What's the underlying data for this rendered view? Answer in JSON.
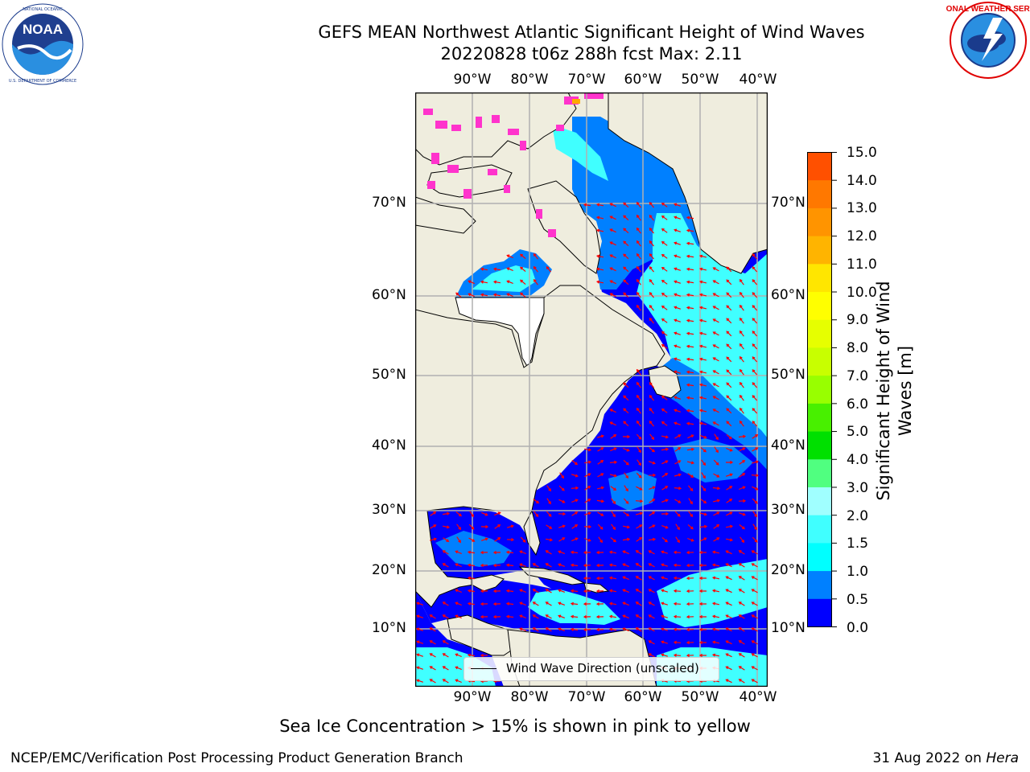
{
  "header": {
    "title_line1": "GEFS MEAN Northwest Atlantic Significant Height of Wind Waves",
    "title_line2": "20220828 t06z 288h fcst   Max: 2.11"
  },
  "logos": {
    "noaa_text": "NOAA",
    "noaa_ring_text": "NATIONAL OCEANIC AND ATMOSPHERIC ADMINISTRATION · U.S. DEPARTMENT OF COMMERCE",
    "nws_ring_text": "NATIONAL WEATHER SERVICE"
  },
  "map": {
    "lon_labels": [
      "90°W",
      "80°W",
      "70°W",
      "60°W",
      "50°W",
      "40°W"
    ],
    "lat_labels": [
      "70°N",
      "60°N",
      "50°N",
      "40°N",
      "30°N",
      "20°N",
      "10°N"
    ],
    "legend_label": "Wind Wave Direction (unscaled)",
    "colors": {
      "land": "#efedde",
      "ice": "#ff33cc",
      "arrows": "#ff0000",
      "wave_0_0_5": "#0000ff",
      "wave_0_5_1": "#0080ff",
      "wave_1_1_5": "#00ffff",
      "wave_1_5_2": "#40ffff"
    }
  },
  "colorbar": {
    "ticks": [
      "15.0",
      "14.0",
      "13.0",
      "12.0",
      "11.0",
      "10.0",
      "9.0",
      "8.0",
      "7.0",
      "6.0",
      "5.0",
      "4.0",
      "3.0",
      "2.0",
      "1.5",
      "1.0",
      "0.5",
      "0.0"
    ],
    "colors": [
      "#ff0000",
      "#ff2800",
      "#ff5000",
      "#ff7800",
      "#ff9400",
      "#ffb400",
      "#ffe600",
      "#ffff00",
      "#e6ff00",
      "#c8ff00",
      "#98ff00",
      "#48f000",
      "#00e000",
      "#50ff80",
      "#a0ffff",
      "#40ffff",
      "#00ffff",
      "#0080ff",
      "#0000ff"
    ],
    "label_line1": "Significant Height of Wind",
    "label_line2": "Waves [m]"
  },
  "footer": {
    "ice_note": "Sea Ice Concentration > 15% is shown in pink to yellow",
    "branch": "NCEP/EMC/Verification Post Processing Product Generation Branch",
    "date": "31 Aug 2022 on ",
    "host": "Hera"
  }
}
